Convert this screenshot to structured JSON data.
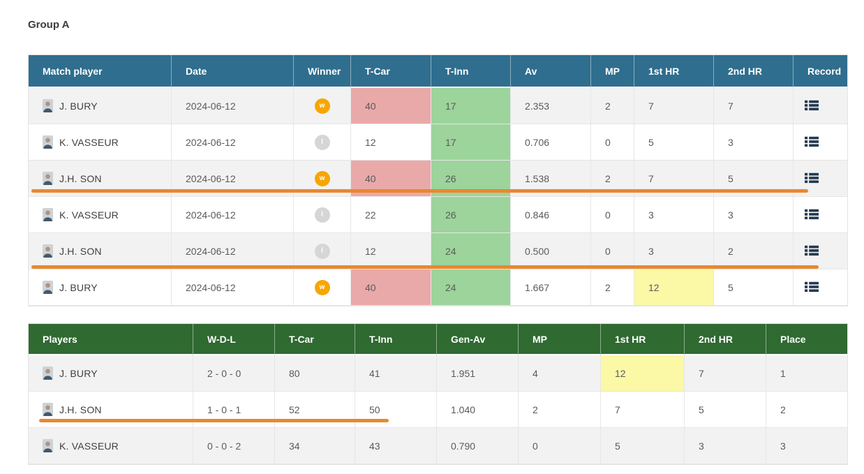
{
  "page": {
    "title": "Group A"
  },
  "colors": {
    "header1_bg": "#2f6e8e",
    "header2_bg": "#2f6a31",
    "row_alt_bg": "#f2f2f2",
    "cell_pink": "#e9a9a9",
    "cell_green": "#9cd49b",
    "cell_yellow": "#fbf8a6",
    "badge_win": "#f7a600",
    "badge_loss": "#d6d6d6",
    "annotation_orange": "#e9882f",
    "record_icon": "#243a4f"
  },
  "match_table": {
    "columns": [
      "Match player",
      "Date",
      "Winner",
      "T-Car",
      "T-Inn",
      "Av",
      "MP",
      "1st HR",
      "2nd HR",
      "Record"
    ],
    "record_icon": "list-icon",
    "rows": [
      {
        "player": "J. BURY",
        "date": "2024-06-12",
        "winner": "W",
        "t_car": "40",
        "t_car_hl": "pink",
        "t_inn": "17",
        "t_inn_hl": "green",
        "av": "2.353",
        "mp": "2",
        "hr1": "7",
        "hr1_hl": "",
        "hr2": "7",
        "underline": false
      },
      {
        "player": "K. VASSEUR",
        "date": "2024-06-12",
        "winner": "L",
        "t_car": "12",
        "t_car_hl": "",
        "t_inn": "17",
        "t_inn_hl": "green",
        "av": "0.706",
        "mp": "0",
        "hr1": "5",
        "hr1_hl": "",
        "hr2": "3",
        "underline": false
      },
      {
        "player": "J.H. SON",
        "date": "2024-06-12",
        "winner": "W",
        "t_car": "40",
        "t_car_hl": "pink",
        "t_inn": "26",
        "t_inn_hl": "green",
        "av": "1.538",
        "mp": "2",
        "hr1": "7",
        "hr1_hl": "",
        "hr2": "5",
        "underline": true
      },
      {
        "player": "K. VASSEUR",
        "date": "2024-06-12",
        "winner": "L",
        "t_car": "22",
        "t_car_hl": "",
        "t_inn": "26",
        "t_inn_hl": "green",
        "av": "0.846",
        "mp": "0",
        "hr1": "3",
        "hr1_hl": "",
        "hr2": "3",
        "underline": false
      },
      {
        "player": "J.H. SON",
        "date": "2024-06-12",
        "winner": "L",
        "t_car": "12",
        "t_car_hl": "",
        "t_inn": "24",
        "t_inn_hl": "green",
        "av": "0.500",
        "mp": "0",
        "hr1": "3",
        "hr1_hl": "",
        "hr2": "2",
        "underline": true
      },
      {
        "player": "J. BURY",
        "date": "2024-06-12",
        "winner": "W",
        "t_car": "40",
        "t_car_hl": "pink",
        "t_inn": "24",
        "t_inn_hl": "green",
        "av": "1.667",
        "mp": "2",
        "hr1": "12",
        "hr1_hl": "yellow",
        "hr2": "5",
        "underline": false
      }
    ]
  },
  "standings_table": {
    "columns": [
      "Players",
      "W-D-L",
      "T-Car",
      "T-Inn",
      "Gen-Av",
      "MP",
      "1st HR",
      "2nd HR",
      "Place"
    ],
    "rows": [
      {
        "player": "J. BURY",
        "wdl": "2 - 0 - 0",
        "t_car": "80",
        "t_inn": "41",
        "gen_av": "1.951",
        "mp": "4",
        "hr1": "12",
        "hr1_hl": "yellow",
        "hr2": "7",
        "place": "1",
        "underline": false
      },
      {
        "player": "J.H. SON",
        "wdl": "1 - 0 - 1",
        "t_car": "52",
        "t_inn": "50",
        "gen_av": "1.040",
        "mp": "2",
        "hr1": "7",
        "hr1_hl": "",
        "hr2": "5",
        "place": "2",
        "underline": true
      },
      {
        "player": "K. VASSEUR",
        "wdl": "0 - 0 - 2",
        "t_car": "34",
        "t_inn": "43",
        "gen_av": "0.790",
        "mp": "0",
        "hr1": "5",
        "hr1_hl": "",
        "hr2": "3",
        "place": "3",
        "underline": false
      }
    ]
  }
}
